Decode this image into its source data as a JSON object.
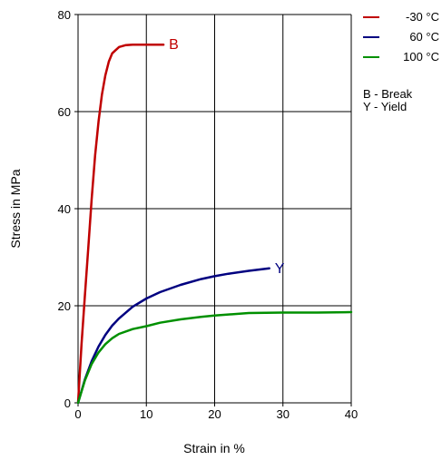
{
  "chart_data": {
    "type": "line",
    "xlabel": "Strain in %",
    "ylabel": "Stress in MPa",
    "xlim": [
      0,
      40
    ],
    "ylim": [
      0,
      80
    ],
    "xticks": [
      0,
      10,
      20,
      30,
      40
    ],
    "yticks": [
      0,
      20,
      40,
      60,
      80
    ],
    "grid": true,
    "legend_position": "top-right",
    "series": [
      {
        "name": "-30 °C",
        "color": "#c00000",
        "end_label": "B",
        "x": [
          0,
          0.5,
          1,
          1.5,
          2,
          2.5,
          3,
          3.5,
          4,
          4.5,
          5,
          6,
          7,
          8,
          9,
          10,
          11,
          12.5
        ],
        "y": [
          0,
          12,
          22,
          32,
          42,
          51,
          58,
          63.5,
          67.5,
          70.3,
          72,
          73.3,
          73.7,
          73.8,
          73.8,
          73.8,
          73.8,
          73.8
        ]
      },
      {
        "name": "60 °C",
        "color": "#000080",
        "end_label": "Y",
        "x": [
          0,
          1,
          2,
          3,
          4,
          5,
          6,
          8,
          10,
          12,
          15,
          18,
          20,
          22,
          25,
          28
        ],
        "y": [
          0,
          4.8,
          8.6,
          11.6,
          14,
          15.9,
          17.4,
          19.8,
          21.5,
          22.8,
          24.3,
          25.5,
          26.1,
          26.6,
          27.2,
          27.7
        ]
      },
      {
        "name": "100 °C",
        "color": "#009000",
        "end_label": "",
        "x": [
          0,
          1,
          2,
          3,
          4,
          5,
          6,
          8,
          10,
          12,
          15,
          18,
          20,
          25,
          30,
          35,
          40
        ],
        "y": [
          0,
          4.6,
          8,
          10.4,
          12.1,
          13.3,
          14.2,
          15.2,
          15.8,
          16.5,
          17.2,
          17.7,
          18,
          18.5,
          18.6,
          18.6,
          18.7
        ]
      }
    ],
    "notes": [
      "B - Break",
      "Y - Yield"
    ]
  }
}
